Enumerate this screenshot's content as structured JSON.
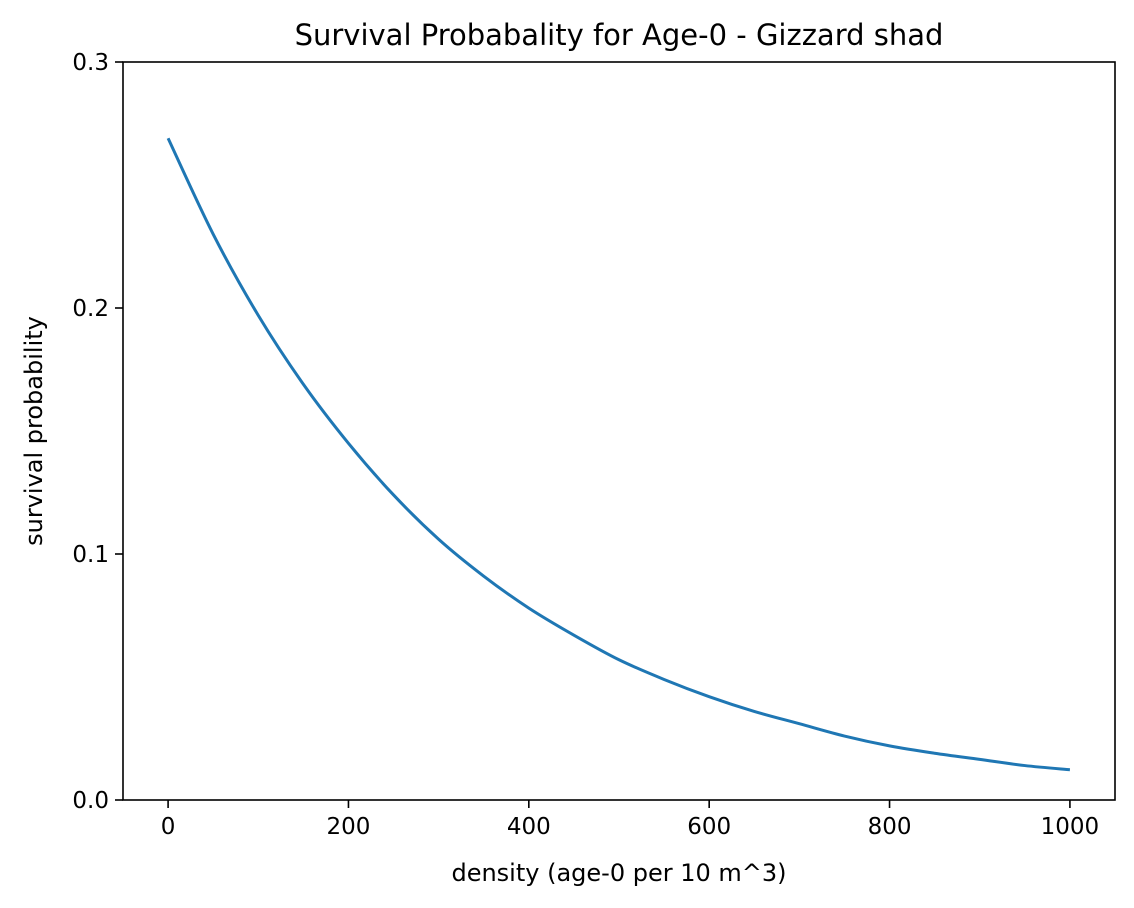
{
  "chart_data": {
    "type": "line",
    "title": "Survival Probabality for Age-0 - Gizzard shad",
    "xlabel": "density (age-0 per 10 m^3)",
    "ylabel": "survival probability",
    "xlim": [
      -50,
      1050
    ],
    "ylim": [
      0.0,
      0.3
    ],
    "xticks": [
      0,
      200,
      400,
      600,
      800,
      1000
    ],
    "xtick_labels": [
      "0",
      "200",
      "400",
      "600",
      "800",
      "1000"
    ],
    "yticks": [
      0.0,
      0.1,
      0.2,
      0.3
    ],
    "ytick_labels": [
      "0.0",
      "0.1",
      "0.2",
      "0.3"
    ],
    "grid": false,
    "series": [
      {
        "color": "#1f77b4",
        "x": [
          0,
          50,
          100,
          150,
          200,
          250,
          300,
          350,
          400,
          450,
          500,
          550,
          600,
          650,
          700,
          750,
          800,
          850,
          900,
          950,
          1000
        ],
        "y": [
          0.269,
          0.23,
          0.197,
          0.169,
          0.145,
          0.124,
          0.106,
          0.091,
          0.078,
          0.067,
          0.057,
          0.049,
          0.042,
          0.036,
          0.031,
          0.026,
          0.022,
          0.019,
          0.0165,
          0.014,
          0.0123
        ]
      }
    ]
  }
}
